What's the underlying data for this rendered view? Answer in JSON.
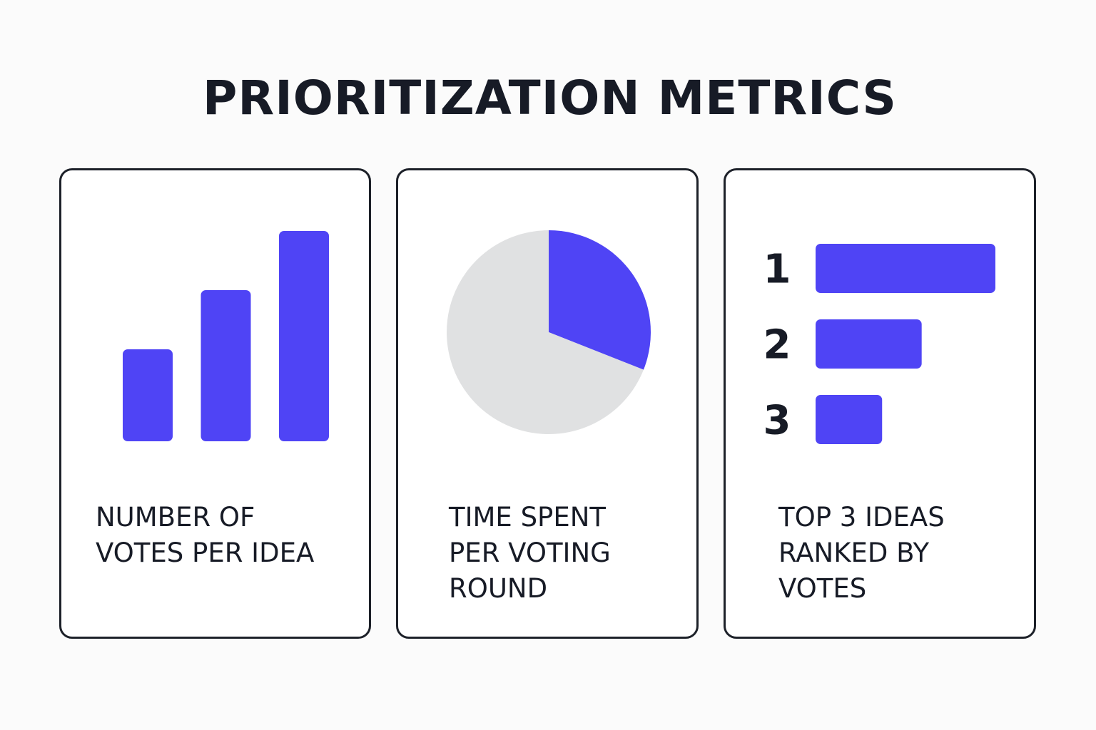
{
  "title": "PRIORITIZATION METRICS",
  "colors": {
    "accent": "#4f44f5",
    "pie_rest": "#e0e1e2",
    "text": "#171b26",
    "border": "#1d2129"
  },
  "chart_data": [
    {
      "type": "bar",
      "caption_lines": [
        "NUMBER OF",
        "VOTES PER IDEA"
      ],
      "categories": [
        "",
        "",
        ""
      ],
      "values": [
        1.4,
        2.3,
        3.2
      ],
      "ylim": [
        0,
        3.2
      ]
    },
    {
      "type": "pie",
      "caption_lines": [
        "TIME SPENT",
        "PER VOTING",
        "ROUND"
      ],
      "slices": [
        {
          "label": "",
          "value": 31,
          "color": "#4f44f5"
        },
        {
          "label": "",
          "value": 69,
          "color": "#e0e1e2"
        }
      ]
    },
    {
      "type": "bar",
      "orientation": "horizontal",
      "caption_lines": [
        "TOP 3 IDEAS",
        "RANKED BY",
        "VOTES"
      ],
      "categories": [
        "1",
        "2",
        "3"
      ],
      "values": [
        100,
        59,
        37
      ],
      "xlim": [
        0,
        100
      ]
    }
  ]
}
